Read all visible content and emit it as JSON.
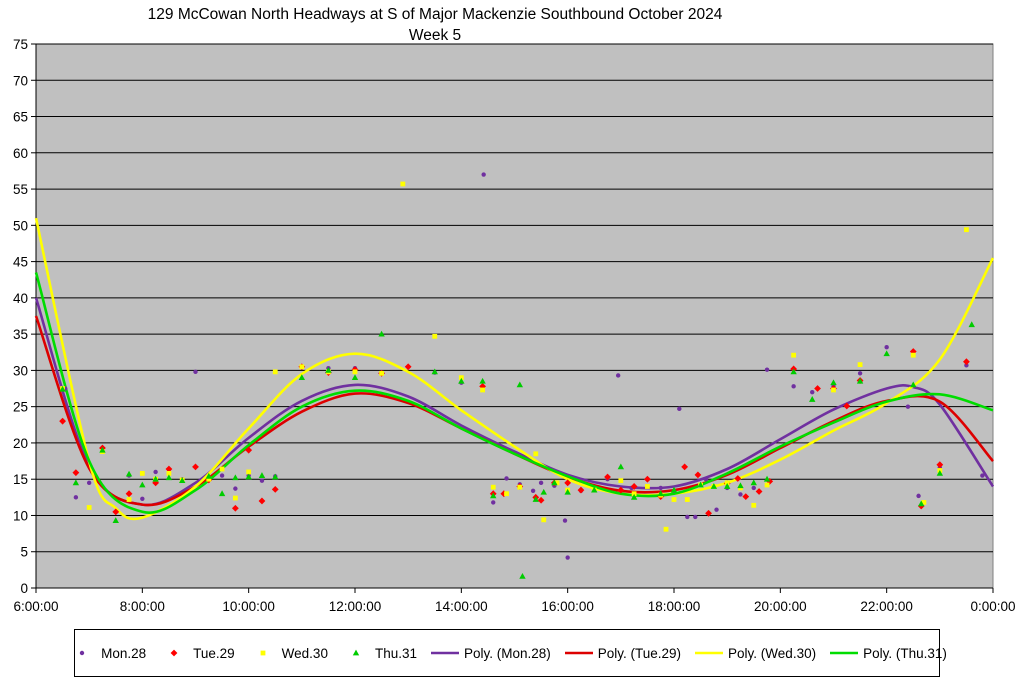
{
  "chart_data": {
    "type": "scatter",
    "title_line1": "129 McCowan North Headways at S of Major Mackenzie Southbound October 2024",
    "title_line2": "Week 5",
    "xlabel": "",
    "ylabel": "",
    "x_unit": "time of day (hours)",
    "xlim": [
      6,
      24
    ],
    "ylim": [
      0,
      75
    ],
    "x_ticks": [
      "6:00:00",
      "8:00:00",
      "10:00:00",
      "12:00:00",
      "14:00:00",
      "16:00:00",
      "18:00:00",
      "20:00:00",
      "22:00:00",
      "0:00:00"
    ],
    "y_ticks": [
      "0",
      "5",
      "10",
      "15",
      "20",
      "25",
      "30",
      "35",
      "40",
      "45",
      "50",
      "55",
      "60",
      "65",
      "70",
      "75"
    ],
    "grid": "horizontal",
    "background": "#c0c0c0",
    "legend_position": "bottom",
    "series": [
      {
        "name": "Mon.28",
        "marker": "circle",
        "color": "#7030a0",
        "points": [
          [
            6.55,
            27.5
          ],
          [
            6.75,
            12.5
          ],
          [
            7.0,
            14.5
          ],
          [
            7.25,
            19
          ],
          [
            7.5,
            10.5
          ],
          [
            7.75,
            15.5
          ],
          [
            8.0,
            12.3
          ],
          [
            8.25,
            16
          ],
          [
            8.5,
            16
          ],
          [
            8.75,
            15
          ],
          [
            9.0,
            29.8
          ],
          [
            9.25,
            15
          ],
          [
            9.5,
            15.5
          ],
          [
            9.75,
            13.7
          ],
          [
            10.0,
            15.5
          ],
          [
            10.25,
            14.8
          ],
          [
            10.5,
            15.4
          ],
          [
            11.5,
            30.3
          ],
          [
            12.0,
            30.3
          ],
          [
            12.5,
            29.7
          ],
          [
            13.0,
            30.5
          ],
          [
            13.5,
            29.7
          ],
          [
            14.0,
            28.3
          ],
          [
            14.42,
            57
          ],
          [
            14.6,
            11.8
          ],
          [
            14.85,
            15.1
          ],
          [
            15.1,
            14.3
          ],
          [
            15.35,
            13.4
          ],
          [
            15.5,
            14.5
          ],
          [
            15.75,
            14.1
          ],
          [
            15.95,
            9.3
          ],
          [
            16.0,
            4.2
          ],
          [
            16.25,
            13.4
          ],
          [
            16.5,
            13.5
          ],
          [
            16.75,
            15
          ],
          [
            16.95,
            29.3
          ],
          [
            17.2,
            13.8
          ],
          [
            17.5,
            15
          ],
          [
            17.75,
            13.8
          ],
          [
            18.0,
            13.4
          ],
          [
            18.1,
            24.7
          ],
          [
            18.25,
            9.8
          ],
          [
            18.4,
            9.8
          ],
          [
            18.6,
            15
          ],
          [
            18.8,
            10.8
          ],
          [
            19.0,
            13.8
          ],
          [
            19.25,
            12.9
          ],
          [
            19.5,
            13.8
          ],
          [
            19.75,
            30.1
          ],
          [
            20.25,
            27.8
          ],
          [
            20.6,
            27
          ],
          [
            21.0,
            27.8
          ],
          [
            21.5,
            29.6
          ],
          [
            22.0,
            33.2
          ],
          [
            22.4,
            25
          ],
          [
            22.6,
            12.7
          ],
          [
            23.0,
            16.6
          ],
          [
            23.5,
            30.7
          ],
          [
            23.8,
            15.5
          ]
        ]
      },
      {
        "name": "Tue.29",
        "marker": "diamond",
        "color": "#ff0000",
        "points": [
          [
            6.5,
            23
          ],
          [
            6.75,
            15.9
          ],
          [
            7.25,
            19.3
          ],
          [
            7.5,
            10.5
          ],
          [
            7.75,
            13
          ],
          [
            8.25,
            14.5
          ],
          [
            8.5,
            16.4
          ],
          [
            9.0,
            16.7
          ],
          [
            9.25,
            14.9
          ],
          [
            9.75,
            11
          ],
          [
            10.0,
            19
          ],
          [
            10.25,
            12
          ],
          [
            10.5,
            13.6
          ],
          [
            11.0,
            30.5
          ],
          [
            11.5,
            29.7
          ],
          [
            12.0,
            30.1
          ],
          [
            12.5,
            29.6
          ],
          [
            13.0,
            30.5
          ],
          [
            14.4,
            27.8
          ],
          [
            14.6,
            13
          ],
          [
            14.8,
            13
          ],
          [
            15.1,
            14
          ],
          [
            15.4,
            12.5
          ],
          [
            15.5,
            12.1
          ],
          [
            15.75,
            14.5
          ],
          [
            16.0,
            14.5
          ],
          [
            16.25,
            13.5
          ],
          [
            16.75,
            15.3
          ],
          [
            17.0,
            13.5
          ],
          [
            17.25,
            14
          ],
          [
            17.5,
            15
          ],
          [
            17.75,
            12.6
          ],
          [
            18.2,
            16.7
          ],
          [
            18.45,
            15.6
          ],
          [
            18.65,
            10.3
          ],
          [
            19.0,
            14.4
          ],
          [
            19.2,
            15.1
          ],
          [
            19.35,
            12.6
          ],
          [
            19.6,
            13.3
          ],
          [
            19.8,
            14.7
          ],
          [
            20.25,
            30.2
          ],
          [
            20.7,
            27.5
          ],
          [
            21.0,
            27.5
          ],
          [
            21.25,
            25.1
          ],
          [
            21.5,
            28.6
          ],
          [
            22.5,
            32.6
          ],
          [
            22.65,
            11.3
          ],
          [
            23.0,
            17
          ],
          [
            23.5,
            31.2
          ]
        ]
      },
      {
        "name": "Wed.30",
        "marker": "square",
        "color": "#ffff00",
        "points": [
          [
            6.5,
            27.5
          ],
          [
            7.0,
            11.1
          ],
          [
            7.25,
            18.8
          ],
          [
            7.75,
            12.2
          ],
          [
            8.0,
            15.8
          ],
          [
            8.25,
            15
          ],
          [
            8.5,
            15.8
          ],
          [
            8.75,
            14.9
          ],
          [
            9.25,
            15
          ],
          [
            9.5,
            16.4
          ],
          [
            9.75,
            12.4
          ],
          [
            10.0,
            16
          ],
          [
            10.5,
            29.8
          ],
          [
            11.0,
            30.5
          ],
          [
            11.5,
            29.8
          ],
          [
            12.0,
            29.8
          ],
          [
            12.5,
            29.6
          ],
          [
            12.9,
            55.7
          ],
          [
            13.5,
            34.7
          ],
          [
            14.0,
            29
          ],
          [
            14.4,
            27.3
          ],
          [
            14.6,
            13.9
          ],
          [
            14.85,
            13
          ],
          [
            15.1,
            13.9
          ],
          [
            15.4,
            18.5
          ],
          [
            15.55,
            9.4
          ],
          [
            15.8,
            14.5
          ],
          [
            16.0,
            13.5
          ],
          [
            16.5,
            13.5
          ],
          [
            17.0,
            14.8
          ],
          [
            17.25,
            13
          ],
          [
            17.5,
            14
          ],
          [
            17.75,
            12.8
          ],
          [
            17.85,
            8.1
          ],
          [
            18.0,
            12.2
          ],
          [
            18.25,
            12.2
          ],
          [
            18.5,
            14.2
          ],
          [
            18.75,
            14
          ],
          [
            19.0,
            14.5
          ],
          [
            19.25,
            13.8
          ],
          [
            19.5,
            11.4
          ],
          [
            19.75,
            14.2
          ],
          [
            20.25,
            32.1
          ],
          [
            21.0,
            27.3
          ],
          [
            21.5,
            30.8
          ],
          [
            22.5,
            32.1
          ],
          [
            22.7,
            11.8
          ],
          [
            23.0,
            16.2
          ],
          [
            23.5,
            49.4
          ]
        ]
      },
      {
        "name": "Thu.31",
        "marker": "triangle",
        "color": "#00cc00",
        "points": [
          [
            6.5,
            27.4
          ],
          [
            6.75,
            14.5
          ],
          [
            7.25,
            19
          ],
          [
            7.5,
            9.3
          ],
          [
            7.75,
            15.7
          ],
          [
            8.0,
            14.2
          ],
          [
            8.25,
            15
          ],
          [
            8.5,
            15.2
          ],
          [
            8.75,
            14.8
          ],
          [
            9.25,
            15.4
          ],
          [
            9.5,
            13
          ],
          [
            9.75,
            15.2
          ],
          [
            10.0,
            15.3
          ],
          [
            10.25,
            15.5
          ],
          [
            10.5,
            15.3
          ],
          [
            11.0,
            29
          ],
          [
            11.5,
            30
          ],
          [
            12.0,
            29
          ],
          [
            12.5,
            35
          ],
          [
            13.5,
            29.8
          ],
          [
            14.0,
            28.5
          ],
          [
            14.4,
            28.5
          ],
          [
            14.6,
            12.7
          ],
          [
            15.1,
            28
          ],
          [
            15.15,
            1.6
          ],
          [
            15.4,
            12.2
          ],
          [
            15.55,
            13.2
          ],
          [
            15.75,
            14.5
          ],
          [
            16.0,
            13.2
          ],
          [
            16.5,
            13.5
          ],
          [
            17.0,
            16.7
          ],
          [
            17.25,
            12.5
          ],
          [
            17.75,
            13
          ],
          [
            18.0,
            13.5
          ],
          [
            18.5,
            14.2
          ],
          [
            18.75,
            14
          ],
          [
            19.0,
            14
          ],
          [
            19.25,
            14.1
          ],
          [
            19.5,
            14.5
          ],
          [
            19.75,
            15
          ],
          [
            20.25,
            29.8
          ],
          [
            20.6,
            26
          ],
          [
            21.0,
            28.3
          ],
          [
            21.5,
            28.5
          ],
          [
            22.0,
            32.3
          ],
          [
            22.5,
            28
          ],
          [
            22.65,
            11.6
          ],
          [
            23.0,
            15.8
          ],
          [
            23.6,
            36.3
          ]
        ]
      },
      {
        "name": "Poly. (Mon.28)",
        "marker": "line",
        "color": "#7030a0",
        "curve": [
          [
            6.0,
            40
          ],
          [
            7.0,
            16.8
          ],
          [
            8.0,
            11.5
          ],
          [
            9.0,
            14.5
          ],
          [
            10.0,
            20.7
          ],
          [
            11.0,
            25.8
          ],
          [
            12.0,
            28
          ],
          [
            13.0,
            26.4
          ],
          [
            14.0,
            22.4
          ],
          [
            15.0,
            18.8
          ],
          [
            16.0,
            15.6
          ],
          [
            17.0,
            14
          ],
          [
            18.0,
            14
          ],
          [
            19.0,
            16.4
          ],
          [
            20.0,
            20.5
          ],
          [
            21.0,
            24.6
          ],
          [
            22.0,
            27.5
          ],
          [
            22.5,
            27.7
          ],
          [
            23.0,
            25.3
          ],
          [
            24.0,
            14
          ]
        ]
      },
      {
        "name": "Poly. (Tue.29)",
        "marker": "line",
        "color": "#dd0000",
        "curve": [
          [
            6.0,
            37.5
          ],
          [
            7.0,
            16.5
          ],
          [
            8.0,
            11.5
          ],
          [
            9.0,
            14
          ],
          [
            10.0,
            19.5
          ],
          [
            11.0,
            24.3
          ],
          [
            12.0,
            26.8
          ],
          [
            13.0,
            25.5
          ],
          [
            14.0,
            22
          ],
          [
            15.0,
            18.5
          ],
          [
            16.0,
            15.3
          ],
          [
            17.0,
            13.4
          ],
          [
            18.0,
            13.5
          ],
          [
            19.0,
            15.6
          ],
          [
            20.0,
            19.3
          ],
          [
            21.0,
            23
          ],
          [
            22.0,
            25.8
          ],
          [
            23.0,
            25.7
          ],
          [
            24.0,
            17.5
          ]
        ]
      },
      {
        "name": "Poly. (Wed.30)",
        "marker": "line",
        "color": "#ffff00",
        "curve": [
          [
            6.0,
            51
          ],
          [
            7.0,
            17.4
          ],
          [
            7.5,
            11
          ],
          [
            8.0,
            9.7
          ],
          [
            9.0,
            14
          ],
          [
            10.0,
            22
          ],
          [
            11.0,
            29.5
          ],
          [
            12.0,
            32.3
          ],
          [
            13.0,
            29.8
          ],
          [
            14.0,
            24.5
          ],
          [
            15.0,
            19.5
          ],
          [
            16.0,
            15
          ],
          [
            17.0,
            13
          ],
          [
            18.0,
            13
          ],
          [
            19.0,
            14.5
          ],
          [
            20.0,
            17.7
          ],
          [
            21.0,
            21.7
          ],
          [
            22.0,
            25.5
          ],
          [
            23.0,
            31.5
          ],
          [
            24.0,
            45.5
          ]
        ]
      },
      {
        "name": "Poly. (Thu.31)",
        "marker": "line",
        "color": "#00dd00",
        "curve": [
          [
            6.0,
            43.5
          ],
          [
            7.0,
            17.5
          ],
          [
            8.0,
            10.5
          ],
          [
            9.0,
            13.5
          ],
          [
            10.0,
            19.7
          ],
          [
            11.0,
            25
          ],
          [
            12.0,
            27.2
          ],
          [
            13.0,
            25.8
          ],
          [
            14.0,
            22
          ],
          [
            15.0,
            18.5
          ],
          [
            16.0,
            15.4
          ],
          [
            17.0,
            13
          ],
          [
            18.0,
            13
          ],
          [
            19.0,
            15.8
          ],
          [
            20.0,
            19.5
          ],
          [
            21.0,
            22.8
          ],
          [
            22.0,
            25.7
          ],
          [
            23.0,
            26.7
          ],
          [
            24.0,
            24.5
          ]
        ]
      }
    ]
  }
}
